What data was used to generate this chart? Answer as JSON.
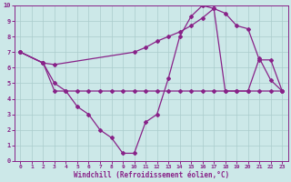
{
  "bg_color": "#cce8e8",
  "line_color": "#882288",
  "grid_color": "#aacccc",
  "xlabel": "Windchill (Refroidissement éolien,°C)",
  "xlim": [
    -0.5,
    23.5
  ],
  "ylim": [
    0,
    10
  ],
  "xticks": [
    0,
    1,
    2,
    3,
    4,
    5,
    6,
    7,
    8,
    9,
    10,
    11,
    12,
    13,
    14,
    15,
    16,
    17,
    18,
    19,
    20,
    21,
    22,
    23
  ],
  "yticks": [
    0,
    1,
    2,
    3,
    4,
    5,
    6,
    7,
    8,
    9,
    10
  ],
  "line1_x": [
    0,
    2,
    3,
    10,
    11,
    12,
    13,
    14,
    15,
    16,
    17,
    18,
    19,
    20,
    21,
    22,
    23
  ],
  "line1_y": [
    7.0,
    6.3,
    6.2,
    7.0,
    7.3,
    7.7,
    8.0,
    8.3,
    8.7,
    9.2,
    9.8,
    9.5,
    8.7,
    8.5,
    6.5,
    6.5,
    4.5
  ],
  "line2_x": [
    0,
    2,
    3,
    4,
    5,
    6,
    7,
    8,
    9,
    10,
    11,
    12,
    13,
    14,
    15,
    16,
    17,
    18,
    19,
    20,
    21,
    22,
    23
  ],
  "line2_y": [
    7.0,
    6.3,
    5.0,
    4.5,
    3.5,
    3.0,
    2.0,
    1.5,
    0.5,
    0.5,
    2.5,
    3.0,
    5.3,
    8.0,
    9.3,
    10.0,
    9.8,
    4.5,
    4.5,
    4.5,
    6.6,
    5.2,
    4.5
  ],
  "line3_x": [
    0,
    2,
    3,
    4,
    5,
    6,
    7,
    8,
    9,
    10,
    11,
    12,
    13,
    14,
    15,
    16,
    17,
    18,
    19,
    20,
    21,
    22,
    23
  ],
  "line3_y": [
    7.0,
    6.3,
    4.5,
    4.5,
    4.5,
    4.5,
    4.5,
    4.5,
    4.5,
    4.5,
    4.5,
    4.5,
    4.5,
    4.5,
    4.5,
    4.5,
    4.5,
    4.5,
    4.5,
    4.5,
    4.5,
    4.5,
    4.5
  ]
}
